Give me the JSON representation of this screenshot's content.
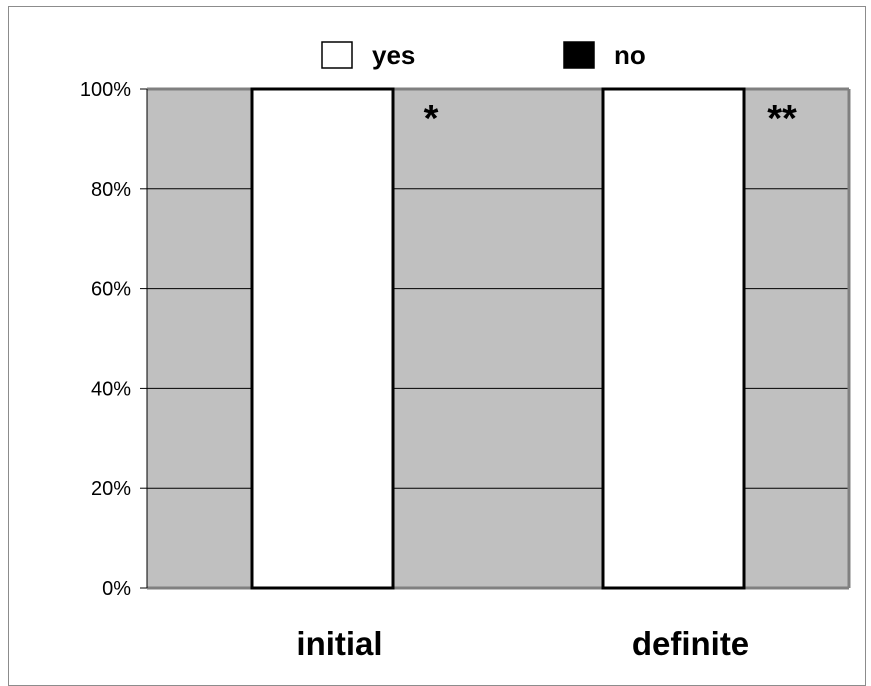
{
  "chart_data": {
    "type": "bar",
    "stacked": true,
    "percent": true,
    "categories": [
      "initial",
      "definite"
    ],
    "series": [
      {
        "name": "yes",
        "values": [
          100,
          100
        ],
        "color": "#ffffff"
      },
      {
        "name": "no",
        "values": [
          0,
          0
        ],
        "color": "#000000"
      }
    ],
    "ylim": [
      0,
      100
    ],
    "yticks": [
      "0%",
      "20%",
      "40%",
      "60%",
      "80%",
      "100%"
    ],
    "annotations": [
      "*",
      "**"
    ],
    "legend_position": "top",
    "grid": true,
    "plot_background": "#c0c0c0"
  }
}
